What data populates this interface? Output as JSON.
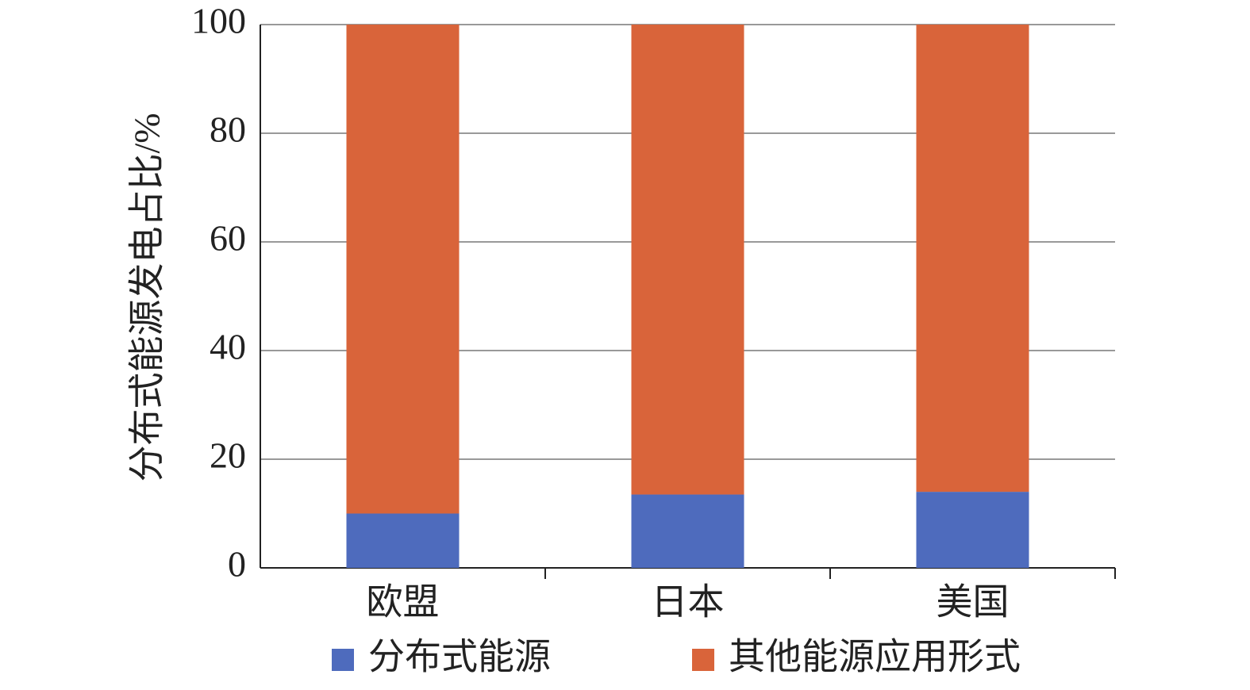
{
  "chart_data": {
    "type": "stacked_bar",
    "y_label": "分布式能源发电占比/%",
    "categories": [
      "欧盟",
      "日本",
      "美国"
    ],
    "series": [
      {
        "name": "分布式能源",
        "color": "#4e6bbd",
        "values": [
          10,
          13.5,
          14
        ]
      },
      {
        "name": "其他能源应用形式",
        "color": "#d9643a",
        "values": [
          90,
          86.5,
          86
        ]
      }
    ],
    "ylim": [
      0,
      100
    ],
    "yticks": [
      0,
      20,
      40,
      60,
      80,
      100
    ],
    "grid": true
  }
}
